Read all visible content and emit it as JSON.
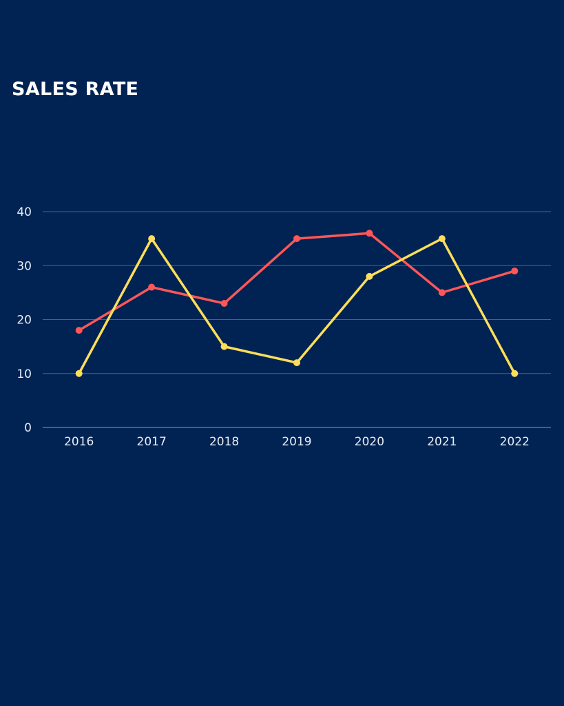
{
  "chart_data": {
    "type": "line",
    "title": "SALES RATE",
    "xlabel": "",
    "ylabel": "",
    "categories": [
      "2016",
      "2017",
      "2018",
      "2019",
      "2020",
      "2021",
      "2022"
    ],
    "ylim": [
      0,
      40
    ],
    "yticks": [
      0,
      10,
      20,
      30,
      40
    ],
    "grid": true,
    "legend": "none",
    "series": [
      {
        "color": "#ff5757",
        "values": [
          18,
          26,
          23,
          35,
          36,
          25,
          29
        ]
      },
      {
        "color": "#ffde59",
        "values": [
          10,
          35,
          15,
          12,
          28,
          35,
          10
        ]
      }
    ]
  },
  "colors": {
    "background": "#002353",
    "grid": "#4a6187",
    "text": "#ffffff"
  }
}
